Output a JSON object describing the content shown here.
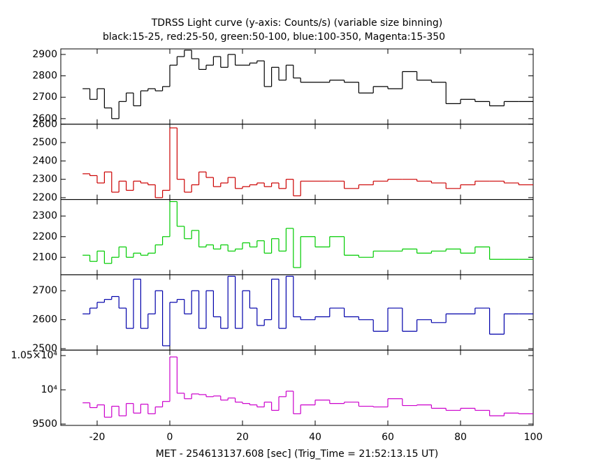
{
  "title": "TDRSS Light curve (y-axis: Counts/s) (variable size binning)",
  "subtitle": "black:15-25, red:25-50, green:50-100, blue:100-350, Magenta:15-350",
  "x_label": "MET - 254613137.608 [sec] (Trig_Time = 21:52:13.15 UT)",
  "chart_data": [
    {
      "type": "line",
      "color": "#000000",
      "x": [
        -24,
        -22,
        -20,
        -18,
        -16,
        -14,
        -12,
        -10,
        -8,
        -6,
        -4,
        -2,
        0,
        2,
        4,
        6,
        8,
        10,
        12,
        14,
        16,
        18,
        20,
        22,
        24,
        26,
        28,
        30,
        32,
        34,
        36,
        40,
        44,
        48,
        52,
        56,
        60,
        64,
        68,
        72,
        76,
        80,
        84,
        88,
        92,
        96
      ],
      "values": [
        2740,
        2690,
        2740,
        2650,
        2600,
        2680,
        2720,
        2660,
        2730,
        2740,
        2730,
        2750,
        2850,
        2890,
        2920,
        2880,
        2830,
        2850,
        2890,
        2840,
        2900,
        2850,
        2850,
        2860,
        2870,
        2750,
        2840,
        2780,
        2850,
        2790,
        2770,
        2770,
        2780,
        2770,
        2720,
        2750,
        2740,
        2820,
        2780,
        2770,
        2670,
        2690,
        2680,
        2660,
        2680,
        2680
      ],
      "xlim": [
        -30,
        100
      ],
      "xticks": [
        -20,
        0,
        20,
        40,
        60,
        80,
        100
      ],
      "ylim": [
        2574,
        2926
      ],
      "yticks": [
        2600,
        2700,
        2800,
        2900
      ]
    },
    {
      "type": "line",
      "color": "#cc0000",
      "x": [
        -24,
        -22,
        -20,
        -18,
        -16,
        -14,
        -12,
        -10,
        -8,
        -6,
        -4,
        -2,
        0,
        2,
        4,
        6,
        8,
        10,
        12,
        14,
        16,
        18,
        20,
        22,
        24,
        26,
        28,
        30,
        32,
        34,
        36,
        40,
        44,
        48,
        52,
        56,
        60,
        64,
        68,
        72,
        76,
        80,
        84,
        88,
        92,
        96
      ],
      "values": [
        2330,
        2320,
        2280,
        2340,
        2230,
        2290,
        2240,
        2290,
        2280,
        2270,
        2200,
        2240,
        2580,
        2300,
        2230,
        2270,
        2340,
        2310,
        2260,
        2280,
        2310,
        2250,
        2260,
        2270,
        2280,
        2260,
        2280,
        2250,
        2300,
        2210,
        2290,
        2290,
        2290,
        2250,
        2270,
        2290,
        2300,
        2300,
        2290,
        2280,
        2250,
        2270,
        2290,
        2290,
        2280,
        2270
      ],
      "xlim": [
        -30,
        100
      ],
      "xticks": [
        -20,
        0,
        20,
        40,
        60,
        80,
        100
      ],
      "ylim": [
        2190,
        2600
      ],
      "yticks": [
        2200,
        2300,
        2400,
        2500,
        2600
      ]
    },
    {
      "type": "line",
      "color": "#00cc00",
      "x": [
        -24,
        -22,
        -20,
        -18,
        -16,
        -14,
        -12,
        -10,
        -8,
        -6,
        -4,
        -2,
        0,
        2,
        4,
        6,
        8,
        10,
        12,
        14,
        16,
        18,
        20,
        22,
        24,
        26,
        28,
        30,
        32,
        34,
        36,
        40,
        44,
        48,
        52,
        56,
        60,
        64,
        68,
        72,
        76,
        80,
        84,
        88,
        92,
        96
      ],
      "values": [
        2110,
        2080,
        2130,
        2070,
        2100,
        2150,
        2100,
        2120,
        2110,
        2120,
        2160,
        2200,
        2370,
        2250,
        2190,
        2230,
        2150,
        2160,
        2140,
        2160,
        2130,
        2140,
        2170,
        2150,
        2180,
        2120,
        2190,
        2130,
        2240,
        2050,
        2200,
        2150,
        2200,
        2110,
        2100,
        2130,
        2130,
        2140,
        2120,
        2130,
        2140,
        2120,
        2150,
        2090,
        2090,
        2090
      ],
      "xlim": [
        -30,
        100
      ],
      "xticks": [
        -20,
        0,
        20,
        40,
        60,
        80,
        100
      ],
      "ylim": [
        2015,
        2380
      ],
      "yticks": [
        2100,
        2200,
        2300
      ]
    },
    {
      "type": "line",
      "color": "#0000aa",
      "x": [
        -24,
        -22,
        -20,
        -18,
        -16,
        -14,
        -12,
        -10,
        -8,
        -6,
        -4,
        -2,
        0,
        2,
        4,
        6,
        8,
        10,
        12,
        14,
        16,
        18,
        20,
        22,
        24,
        26,
        28,
        30,
        32,
        34,
        36,
        40,
        44,
        48,
        52,
        56,
        60,
        64,
        68,
        72,
        76,
        80,
        84,
        88,
        92,
        96
      ],
      "values": [
        2620,
        2640,
        2660,
        2670,
        2680,
        2640,
        2570,
        2740,
        2570,
        2620,
        2700,
        2510,
        2660,
        2670,
        2620,
        2700,
        2570,
        2700,
        2610,
        2570,
        2750,
        2570,
        2700,
        2640,
        2580,
        2600,
        2740,
        2570,
        2750,
        2610,
        2600,
        2610,
        2640,
        2610,
        2600,
        2560,
        2640,
        2560,
        2600,
        2590,
        2620,
        2620,
        2640,
        2550,
        2620,
        2620
      ],
      "xlim": [
        -30,
        100
      ],
      "xticks": [
        -20,
        0,
        20,
        40,
        60,
        80,
        100
      ],
      "ylim": [
        2495,
        2755
      ],
      "yticks": [
        2500,
        2600,
        2700
      ]
    },
    {
      "type": "line",
      "color": "#cc00cc",
      "x": [
        -24,
        -22,
        -20,
        -18,
        -16,
        -14,
        -12,
        -10,
        -8,
        -6,
        -4,
        -2,
        0,
        2,
        4,
        6,
        8,
        10,
        12,
        14,
        16,
        18,
        20,
        22,
        24,
        26,
        28,
        30,
        32,
        34,
        36,
        40,
        44,
        48,
        52,
        56,
        60,
        64,
        68,
        72,
        76,
        80,
        84,
        88,
        92,
        96
      ],
      "values": [
        9810,
        9740,
        9780,
        9600,
        9760,
        9620,
        9800,
        9660,
        9790,
        9650,
        9750,
        9830,
        10480,
        9950,
        9870,
        9940,
        9930,
        9900,
        9910,
        9850,
        9880,
        9820,
        9800,
        9780,
        9750,
        9820,
        9700,
        9900,
        9980,
        9650,
        9780,
        9850,
        9800,
        9820,
        9760,
        9750,
        9870,
        9770,
        9780,
        9730,
        9700,
        9730,
        9700,
        9620,
        9660,
        9650
      ],
      "xlim": [
        -30,
        100
      ],
      "xticks": [
        -20,
        0,
        20,
        40,
        60,
        80,
        100
      ],
      "ylim": [
        9480,
        10580
      ],
      "yticks": [
        {
          "value": 10500,
          "label": "1.05×10⁴"
        },
        {
          "value": 10000,
          "label": "10⁴"
        },
        9500
      ]
    }
  ]
}
